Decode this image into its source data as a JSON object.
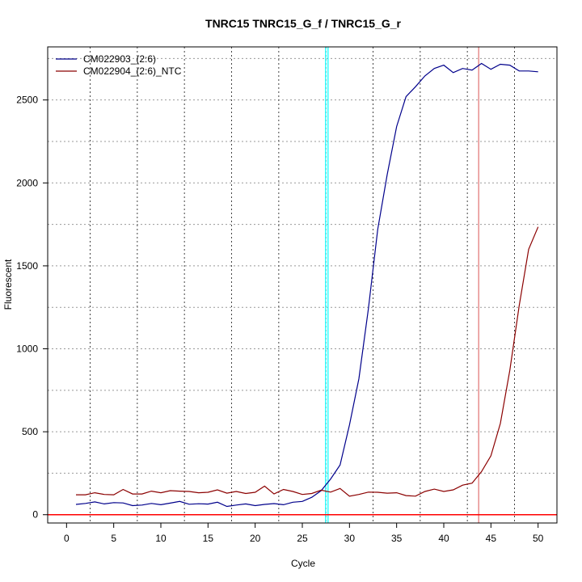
{
  "chart_data": {
    "type": "line",
    "title": "TNRC15  TNRC15_G_f / TNRC15_G_r",
    "xlabel": "Cycle",
    "ylabel": "Fluorescent",
    "xlim": [
      -2.0,
      52.0
    ],
    "ylim": [
      -50,
      2820
    ],
    "xticks": [
      0,
      5,
      10,
      15,
      20,
      25,
      30,
      35,
      40,
      45,
      50
    ],
    "yticks": [
      0,
      500,
      1000,
      1500,
      2000,
      2500
    ],
    "grid": true,
    "legend_position": "top-left",
    "series": [
      {
        "name": "CM022903_(2:6)",
        "color": "#00008b",
        "x": [
          1,
          2,
          3,
          4,
          5,
          6,
          7,
          8,
          9,
          10,
          11,
          12,
          13,
          14,
          15,
          16,
          17,
          18,
          19,
          20,
          21,
          22,
          23,
          24,
          25,
          26,
          27,
          28,
          29,
          30,
          31,
          32,
          33,
          34,
          35,
          36,
          37,
          38,
          39,
          40,
          41,
          42,
          43,
          44,
          45,
          46,
          47,
          48,
          49,
          50
        ],
        "values": [
          62,
          68,
          77,
          65,
          73,
          71,
          55,
          58,
          68,
          60,
          70,
          80,
          63,
          66,
          64,
          75,
          50,
          58,
          65,
          55,
          62,
          67,
          60,
          75,
          80,
          105,
          145,
          215,
          300,
          540,
          820,
          1240,
          1720,
          2050,
          2340,
          2520,
          2580,
          2645,
          2690,
          2710,
          2665,
          2690,
          2680,
          2720,
          2685,
          2715,
          2710,
          2675,
          2675,
          2670
        ]
      },
      {
        "name": "CM022904_(2:6)_NTC",
        "color": "#8b0000",
        "x": [
          1,
          2,
          3,
          4,
          5,
          6,
          7,
          8,
          9,
          10,
          11,
          12,
          13,
          14,
          15,
          16,
          17,
          18,
          19,
          20,
          21,
          22,
          23,
          24,
          25,
          26,
          27,
          28,
          29,
          30,
          31,
          32,
          33,
          34,
          35,
          36,
          37,
          38,
          39,
          40,
          41,
          42,
          43,
          44,
          45,
          46,
          47,
          48,
          49,
          50
        ],
        "values": [
          120,
          120,
          132,
          122,
          120,
          152,
          125,
          125,
          142,
          132,
          145,
          142,
          140,
          132,
          135,
          150,
          130,
          140,
          128,
          135,
          172,
          125,
          152,
          140,
          122,
          128,
          148,
          136,
          158,
          112,
          122,
          136,
          135,
          130,
          132,
          115,
          112,
          140,
          154,
          140,
          150,
          178,
          190,
          260,
          355,
          550,
          870,
          1260,
          1600,
          1735
        ]
      }
    ],
    "threshold_lines": {
      "horizontal_y": 0,
      "horizontal_color": "#ff0000",
      "vertical_cyan_x": 27.6,
      "vertical_cyan_color": "#00ffff",
      "vertical_red_x": 43.7,
      "vertical_red_color": "#e07070"
    }
  }
}
